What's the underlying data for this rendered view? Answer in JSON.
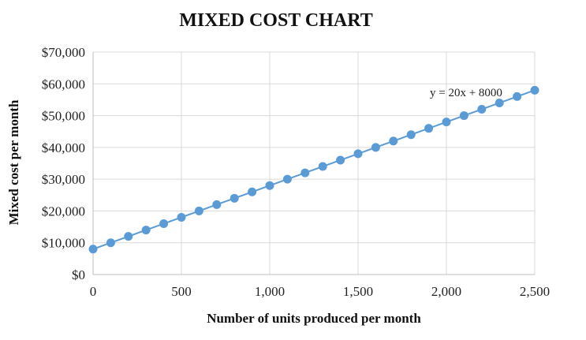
{
  "chart_data": {
    "type": "scatter",
    "title": "MIXED COST CHART",
    "xlabel": "Number of units produced per month",
    "ylabel": "Mixed cost per month",
    "xlim": [
      0,
      2500
    ],
    "ylim": [
      0,
      70000
    ],
    "x_ticks": [
      0,
      500,
      1000,
      1500,
      2000,
      2500
    ],
    "x_tick_labels": [
      "0",
      "500",
      "1,000",
      "1,500",
      "2,000",
      "2,500"
    ],
    "y_ticks": [
      0,
      10000,
      20000,
      30000,
      40000,
      50000,
      60000,
      70000
    ],
    "y_tick_labels": [
      "$0",
      "$10,000",
      "$20,000",
      "$30,000",
      "$40,000",
      "$50,000",
      "$60,000",
      "$70,000"
    ],
    "grid": true,
    "series": [
      {
        "name": "Mixed cost",
        "x": [
          0,
          100,
          200,
          300,
          400,
          500,
          600,
          700,
          800,
          900,
          1000,
          1100,
          1200,
          1300,
          1400,
          1500,
          1600,
          1700,
          1800,
          1900,
          2000,
          2100,
          2200,
          2300,
          2400,
          2500
        ],
        "y": [
          8000,
          10000,
          12000,
          14000,
          16000,
          18000,
          20000,
          22000,
          24000,
          26000,
          28000,
          30000,
          32000,
          34000,
          36000,
          38000,
          40000,
          42000,
          44000,
          46000,
          48000,
          50000,
          52000,
          54000,
          56000,
          58000
        ]
      }
    ],
    "trendline": {
      "equation": "y = 20x + 8000",
      "slope": 20,
      "intercept": 8000
    },
    "colors": {
      "series": "#5b9bd5",
      "grid": "#d9d9d9",
      "axis": "#bfbfbf"
    }
  }
}
